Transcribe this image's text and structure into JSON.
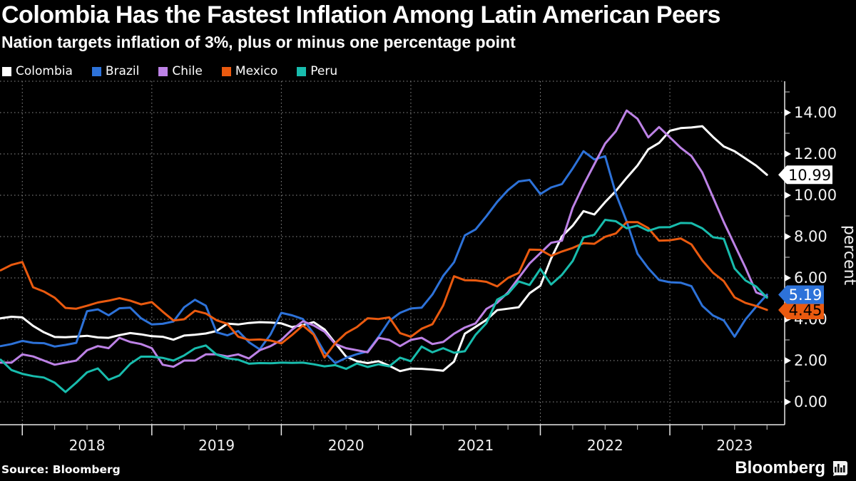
{
  "title": "Colombia Has the Fastest Inflation Among Latin American Peers",
  "subtitle": "Nation targets inflation of 3%, plus or minus one percentage point",
  "source": "Source: Bloomberg",
  "logo_text": "Bloomberg",
  "colors": {
    "background": "#000000",
    "text": "#ffffff",
    "grid": "#8f8f8f",
    "axis": "#e8e8e8"
  },
  "legend": [
    {
      "label": "Colombia",
      "color": "#ffffff"
    },
    {
      "label": "Brazil",
      "color": "#2d72d9"
    },
    {
      "label": "Chile",
      "color": "#bd82e6"
    },
    {
      "label": "Mexico",
      "color": "#ea5a0f"
    },
    {
      "label": "Peru",
      "color": "#18bcad"
    }
  ],
  "chart_data": {
    "type": "line",
    "frequency": "monthly",
    "x_start": "2017-10",
    "x_end": "2023-09",
    "x_axis": {
      "years": [
        "2018",
        "2019",
        "2020",
        "2021",
        "2022",
        "2023"
      ]
    },
    "y_axis": {
      "label": "percent",
      "tick_values": [
        0,
        2,
        4,
        6,
        8,
        10,
        12,
        14
      ],
      "tick_labels": [
        "0.00",
        "2.00",
        "4.00",
        "6.00",
        "8.00",
        "10.00",
        "12.00",
        "14.00"
      ],
      "minor_step": 1,
      "min": 0,
      "max": 15
    },
    "legend_position": "top-left",
    "grid": true,
    "series": [
      {
        "name": "Colombia",
        "color": "#ffffff",
        "values": [
          4.05,
          4.12,
          4.09,
          3.68,
          3.37,
          3.14,
          3.13,
          3.16,
          3.2,
          3.12,
          3.1,
          3.23,
          3.33,
          3.27,
          3.18,
          3.15,
          3.01,
          3.21,
          3.25,
          3.31,
          3.43,
          3.79,
          3.75,
          3.82,
          3.86,
          3.84,
          3.8,
          3.62,
          3.72,
          3.86,
          3.51,
          2.85,
          2.19,
          1.97,
          1.88,
          1.97,
          1.75,
          1.49,
          1.61,
          1.6,
          1.56,
          1.51,
          1.95,
          3.3,
          3.63,
          3.97,
          4.44,
          4.51,
          4.58,
          5.26,
          5.62,
          6.94,
          8.01,
          8.53,
          9.23,
          9.07,
          9.67,
          10.21,
          10.84,
          11.44,
          12.22,
          12.53,
          13.12,
          13.25,
          13.28,
          13.34,
          12.82,
          12.36,
          12.13,
          11.78,
          11.43,
          10.99
        ],
        "end_label": {
          "text": "10.99",
          "bg": "#ffffff",
          "fg": "#000000"
        }
      },
      {
        "name": "Brazil",
        "color": "#2d72d9",
        "values": [
          2.7,
          2.8,
          2.95,
          2.86,
          2.84,
          2.68,
          2.76,
          2.86,
          4.39,
          4.48,
          4.19,
          4.53,
          4.56,
          4.05,
          3.75,
          3.78,
          3.89,
          4.58,
          4.94,
          4.66,
          3.37,
          3.22,
          3.43,
          2.89,
          2.54,
          3.27,
          4.31,
          4.19,
          4.01,
          3.3,
          2.4,
          1.88,
          2.13,
          2.31,
          2.44,
          3.14,
          3.92,
          4.31,
          4.52,
          4.56,
          5.2,
          6.1,
          6.76,
          8.06,
          8.35,
          8.99,
          9.68,
          10.25,
          10.67,
          10.74,
          10.06,
          10.38,
          10.54,
          11.3,
          12.13,
          11.73,
          11.89,
          10.07,
          8.73,
          7.17,
          6.47,
          5.9,
          5.79,
          5.77,
          5.6,
          4.65,
          4.18,
          3.94,
          3.16,
          3.99,
          4.61,
          5.19
        ],
        "end_label": {
          "text": "5.19",
          "bg": "#2d72d9",
          "fg": "#ffffff"
        }
      },
      {
        "name": "Chile",
        "color": "#bd82e6",
        "values": [
          1.9,
          1.9,
          2.3,
          2.2,
          2.0,
          1.8,
          1.9,
          2.0,
          2.5,
          2.7,
          2.6,
          3.1,
          2.9,
          2.8,
          2.6,
          1.8,
          1.7,
          2.0,
          2.0,
          2.3,
          2.3,
          2.2,
          2.3,
          2.1,
          2.5,
          2.7,
          3.0,
          3.5,
          3.9,
          3.7,
          3.4,
          2.8,
          2.6,
          2.5,
          2.4,
          3.1,
          3.0,
          2.7,
          3.0,
          3.1,
          2.8,
          2.9,
          3.3,
          3.6,
          3.8,
          4.5,
          4.8,
          5.3,
          6.0,
          6.7,
          7.2,
          7.7,
          7.8,
          9.4,
          10.5,
          11.5,
          12.5,
          13.1,
          14.1,
          13.7,
          12.8,
          13.3,
          12.8,
          12.3,
          11.9,
          11.1,
          9.9,
          8.7,
          7.6,
          6.5,
          5.3,
          5.1
        ],
        "end_label": null
      },
      {
        "name": "Mexico",
        "color": "#ea5a0f",
        "values": [
          6.37,
          6.63,
          6.77,
          5.55,
          5.34,
          5.04,
          4.55,
          4.51,
          4.65,
          4.81,
          4.9,
          5.02,
          4.9,
          4.72,
          4.83,
          4.37,
          3.94,
          4.0,
          4.41,
          4.28,
          3.95,
          3.78,
          3.16,
          3.0,
          3.02,
          2.97,
          2.83,
          3.24,
          3.7,
          3.25,
          2.15,
          2.84,
          3.33,
          3.62,
          4.05,
          4.01,
          4.09,
          3.33,
          3.15,
          3.54,
          3.76,
          4.67,
          6.08,
          5.89,
          5.88,
          5.81,
          5.59,
          6.0,
          6.24,
          7.37,
          7.36,
          7.07,
          7.28,
          7.45,
          7.68,
          7.65,
          7.99,
          8.15,
          8.7,
          8.7,
          8.41,
          7.8,
          7.82,
          7.91,
          7.62,
          6.85,
          6.25,
          5.84,
          5.06,
          4.79,
          4.64,
          4.45
        ],
        "end_label": {
          "text": "4.45",
          "bg": "#ea5a0f",
          "fg": "#000000"
        }
      },
      {
        "name": "Peru",
        "color": "#18bcad",
        "values": [
          2.04,
          1.54,
          1.36,
          1.25,
          1.18,
          0.93,
          0.48,
          0.93,
          1.43,
          1.62,
          1.07,
          1.28,
          1.84,
          2.19,
          2.19,
          2.13,
          2.0,
          2.25,
          2.59,
          2.73,
          2.29,
          2.11,
          2.04,
          1.85,
          1.88,
          1.87,
          1.9,
          1.89,
          1.9,
          1.82,
          1.72,
          1.78,
          1.6,
          1.86,
          1.69,
          1.82,
          1.72,
          2.14,
          1.97,
          2.68,
          2.4,
          2.6,
          2.38,
          2.45,
          3.25,
          3.81,
          4.95,
          5.23,
          5.83,
          5.66,
          6.43,
          5.68,
          6.15,
          6.82,
          7.96,
          8.09,
          8.81,
          8.74,
          8.4,
          8.53,
          8.28,
          8.45,
          8.46,
          8.66,
          8.65,
          8.4,
          7.97,
          7.89,
          6.46,
          5.88,
          5.58,
          5.04
        ],
        "end_label": null
      }
    ]
  }
}
